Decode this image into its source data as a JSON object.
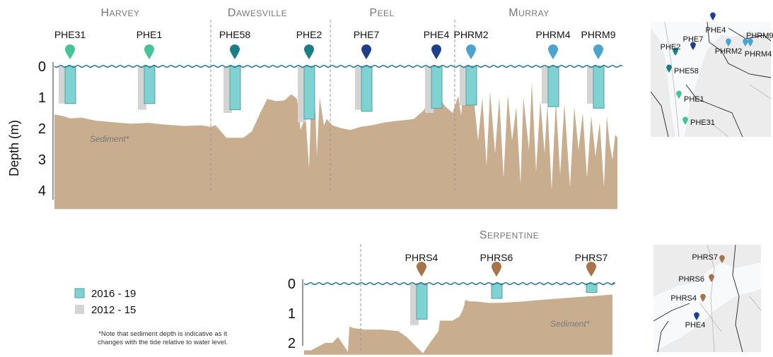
{
  "colors": {
    "recent": "#7fd2d2",
    "recent_stroke": "#5a9ea0",
    "earlier": "#d4d4d4",
    "sediment": "#c8ad8e",
    "water": "#2f7f98",
    "divider": "#9a9a9a",
    "marker_green": "#45c49a",
    "marker_teal": "#1b7e86",
    "marker_navy": "#1d3f8c",
    "marker_blue": "#4aa4cf",
    "marker_brown": "#a8744a"
  },
  "y_axis_label": "Depth (m)",
  "sediment_note": "*Note that sediment depth is indicative as it changes with the tide relative to water level.",
  "legend": [
    {
      "label": "2016 - 19",
      "color_key": "recent"
    },
    {
      "label": "2012 - 15",
      "color_key": "earlier"
    }
  ],
  "chart_data": [
    {
      "type": "bar",
      "y_label": "Depth (m)",
      "y_ticks": [
        "0",
        "1",
        "2",
        "3",
        "4"
      ],
      "ylim": [
        0,
        4.3
      ],
      "regions": [
        "Harvey",
        "Dawesville",
        "Peel",
        "Murray"
      ],
      "sediment_label": "Sediment*",
      "categories": [
        "PHE31",
        "PHE1",
        "PHE58",
        "PHE2",
        "PHE7",
        "PHE4",
        "PHRM2",
        "PHRM4",
        "PHRM9"
      ],
      "marker_colors": [
        "marker_green",
        "marker_green",
        "marker_teal",
        "marker_teal",
        "marker_navy",
        "marker_navy",
        "marker_blue",
        "marker_blue",
        "marker_blue"
      ],
      "series": [
        {
          "name": "2016 - 19",
          "values": [
            1.2,
            1.2,
            1.4,
            1.7,
            1.45,
            1.35,
            1.25,
            1.3,
            1.35
          ]
        },
        {
          "name": "2012 - 15",
          "values": [
            1.2,
            1.4,
            1.5,
            1.8,
            1.4,
            1.5,
            1.25,
            1.2,
            1.2
          ]
        }
      ]
    },
    {
      "type": "bar",
      "y_ticks": [
        "0",
        "1",
        "2"
      ],
      "ylim": [
        0,
        2.1
      ],
      "regions": [
        "Serpentine"
      ],
      "sediment_label": "Sediment*",
      "categories": [
        "PHRS4",
        "PHRS6",
        "PHRS7"
      ],
      "marker_colors": [
        "marker_brown",
        "marker_brown",
        "marker_brown"
      ],
      "series": [
        {
          "name": "2016 - 19",
          "values": [
            1.2,
            0.5,
            0.3
          ]
        },
        {
          "name": "2012 - 15",
          "values": [
            1.4,
            0.0,
            0.0
          ]
        }
      ]
    }
  ],
  "map_top": {
    "labels": [
      "PHE4",
      "PHE7",
      "PHE2",
      "PHRM2",
      "PHRM9",
      "PHRM4",
      "PHE58",
      "PHE1",
      "PHE31"
    ],
    "marker_colors": [
      "marker_navy",
      "marker_navy",
      "marker_teal",
      "marker_blue",
      "marker_blue",
      "marker_blue",
      "marker_teal",
      "marker_green",
      "marker_green"
    ]
  },
  "map_bottom": {
    "labels": [
      "PHRS7",
      "PHRS6",
      "PHRS4",
      "PHE4"
    ],
    "marker_colors": [
      "marker_brown",
      "marker_brown",
      "marker_brown",
      "marker_navy"
    ]
  }
}
